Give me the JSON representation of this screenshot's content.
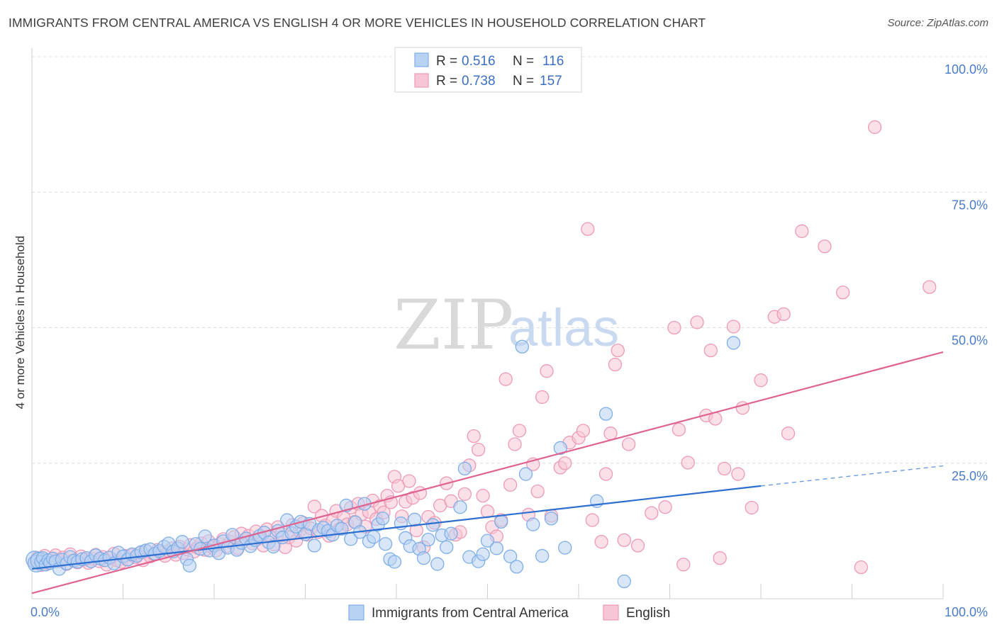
{
  "title": "IMMIGRANTS FROM CENTRAL AMERICA VS ENGLISH 4 OR MORE VEHICLES IN HOUSEHOLD CORRELATION CHART",
  "source": "Source: ZipAtlas.com",
  "watermark": {
    "zip": "ZIP",
    "atlas": "atlas"
  },
  "legend": {
    "r_label": "R =",
    "n_label": "N =",
    "series": [
      {
        "name": "Immigrants from Central America",
        "r": "0.516",
        "n": "116",
        "color": "#7eaee8",
        "fill": "#b8d2f2"
      },
      {
        "name": "English",
        "r": "0.738",
        "n": "157",
        "color": "#ee9ab5",
        "fill": "#f7c6d6"
      }
    ]
  },
  "chart_data": {
    "type": "scatter",
    "title": "IMMIGRANTS FROM CENTRAL AMERICA VS ENGLISH 4 OR MORE VEHICLES IN HOUSEHOLD CORRELATION CHART",
    "xlabel": "",
    "ylabel": "4 or more Vehicles in Household",
    "xlim": [
      0,
      100
    ],
    "ylim": [
      0,
      100
    ],
    "x_tick_labels": [
      "0.0%",
      "100.0%"
    ],
    "y_ticks": [
      25,
      50,
      75,
      100
    ],
    "y_tick_labels": [
      "25.0%",
      "50.0%",
      "75.0%",
      "100.0%"
    ],
    "grid": true,
    "legend_position": "top-center",
    "series": [
      {
        "name": "Immigrants from Central America",
        "color": "#5b93de",
        "trend": {
          "x": [
            0,
            80
          ],
          "y": [
            5.5,
            20.8
          ],
          "dashed_to": [
            100,
            24.5
          ],
          "color": "#2c6fd0"
        },
        "points": [
          [
            0.3,
            7.2
          ],
          [
            0.5,
            6.5
          ],
          [
            0.8,
            7.0
          ],
          [
            1.0,
            6.8
          ],
          [
            1.2,
            7.5
          ],
          [
            1.5,
            6.3
          ],
          [
            1.8,
            7.1
          ],
          [
            2.0,
            6.6
          ],
          [
            2.3,
            7.4
          ],
          [
            2.6,
            6.9
          ],
          [
            3.0,
            5.5
          ],
          [
            3.3,
            7.2
          ],
          [
            3.8,
            6.5
          ],
          [
            4.2,
            7.7
          ],
          [
            4.6,
            7.0
          ],
          [
            5.0,
            6.8
          ],
          [
            5.5,
            7.3
          ],
          [
            6.0,
            7.5
          ],
          [
            6.5,
            6.9
          ],
          [
            7.0,
            8.0
          ],
          [
            7.5,
            7.4
          ],
          [
            8.0,
            7.1
          ],
          [
            8.5,
            7.6
          ],
          [
            9.0,
            6.5
          ],
          [
            9.5,
            8.5
          ],
          [
            10.0,
            7.8
          ],
          [
            10.5,
            7.2
          ],
          [
            11.0,
            8.2
          ],
          [
            11.5,
            7.9
          ],
          [
            12.0,
            8.6
          ],
          [
            12.5,
            8.9
          ],
          [
            13.0,
            9.1
          ],
          [
            13.5,
            8.3
          ],
          [
            14.0,
            8.8
          ],
          [
            14.5,
            9.6
          ],
          [
            15.0,
            10.2
          ],
          [
            15.5,
            8.7
          ],
          [
            16.0,
            9.3
          ],
          [
            16.5,
            10.5
          ],
          [
            17.0,
            7.3
          ],
          [
            17.3,
            6.1
          ],
          [
            18.0,
            10.1
          ],
          [
            18.5,
            9.2
          ],
          [
            19.0,
            11.5
          ],
          [
            19.5,
            8.9
          ],
          [
            20.0,
            9.8
          ],
          [
            20.5,
            8.4
          ],
          [
            21.0,
            10.6
          ],
          [
            21.5,
            9.4
          ],
          [
            22.0,
            11.8
          ],
          [
            22.5,
            9.0
          ],
          [
            23.0,
            10.3
          ],
          [
            23.5,
            11.1
          ],
          [
            24.0,
            9.7
          ],
          [
            24.5,
            10.8
          ],
          [
            25.0,
            11.6
          ],
          [
            25.5,
            12.2
          ],
          [
            26.0,
            10.4
          ],
          [
            26.5,
            9.6
          ],
          [
            27.0,
            12.5
          ],
          [
            27.5,
            11.3
          ],
          [
            28.0,
            14.5
          ],
          [
            28.5,
            12.1
          ],
          [
            29.0,
            13.3
          ],
          [
            29.5,
            14.2
          ],
          [
            30.0,
            11.9
          ],
          [
            30.5,
            13.8
          ],
          [
            31.0,
            9.8
          ],
          [
            31.5,
            12.7
          ],
          [
            32.0,
            13.1
          ],
          [
            32.5,
            12.5
          ],
          [
            33.0,
            11.8
          ],
          [
            33.5,
            13.5
          ],
          [
            34.0,
            12.9
          ],
          [
            34.5,
            17.2
          ],
          [
            35.0,
            11.0
          ],
          [
            35.5,
            14.1
          ],
          [
            36.0,
            12.3
          ],
          [
            36.5,
            17.5
          ],
          [
            37.0,
            10.6
          ],
          [
            37.5,
            11.4
          ],
          [
            38.0,
            13.7
          ],
          [
            38.5,
            14.8
          ],
          [
            38.8,
            10.1
          ],
          [
            39.3,
            7.3
          ],
          [
            39.8,
            6.8
          ],
          [
            40.5,
            13.9
          ],
          [
            41.0,
            11.2
          ],
          [
            41.5,
            9.7
          ],
          [
            42.0,
            14.6
          ],
          [
            42.5,
            9.2
          ],
          [
            43.0,
            7.5
          ],
          [
            43.5,
            10.9
          ],
          [
            44.0,
            13.6
          ],
          [
            44.5,
            6.4
          ],
          [
            45.0,
            11.7
          ],
          [
            45.5,
            9.5
          ],
          [
            46.0,
            12.0
          ],
          [
            47.0,
            16.9
          ],
          [
            47.5,
            24.0
          ],
          [
            48.0,
            7.7
          ],
          [
            49.0,
            6.9
          ],
          [
            49.5,
            8.2
          ],
          [
            50.0,
            10.7
          ],
          [
            51.0,
            9.3
          ],
          [
            51.5,
            14.2
          ],
          [
            52.5,
            7.8
          ],
          [
            53.2,
            5.9
          ],
          [
            53.8,
            46.5
          ],
          [
            54.2,
            23.0
          ],
          [
            55.0,
            13.7
          ],
          [
            56.0,
            7.9
          ],
          [
            57.0,
            14.8
          ],
          [
            58.0,
            27.8
          ],
          [
            58.5,
            9.4
          ],
          [
            62.0,
            18.0
          ],
          [
            63.0,
            34.1
          ],
          [
            65.0,
            3.2
          ],
          [
            77.0,
            47.2
          ]
        ]
      },
      {
        "name": "English",
        "color": "#ec8fae",
        "trend": {
          "x": [
            0,
            100
          ],
          "y": [
            1.0,
            45.5
          ],
          "color": "#e0628e"
        },
        "points": [
          [
            0.3,
            6.8
          ],
          [
            0.6,
            7.5
          ],
          [
            1.0,
            6.2
          ],
          [
            1.4,
            7.9
          ],
          [
            1.8,
            6.5
          ],
          [
            2.2,
            7.3
          ],
          [
            2.6,
            8.0
          ],
          [
            3.0,
            6.9
          ],
          [
            3.4,
            7.6
          ],
          [
            3.8,
            6.4
          ],
          [
            4.2,
            8.2
          ],
          [
            4.6,
            7.1
          ],
          [
            5.0,
            6.7
          ],
          [
            5.4,
            7.8
          ],
          [
            5.8,
            7.2
          ],
          [
            6.2,
            6.6
          ],
          [
            6.6,
            7.4
          ],
          [
            7.0,
            8.1
          ],
          [
            7.4,
            6.9
          ],
          [
            7.8,
            7.7
          ],
          [
            8.2,
            6.3
          ],
          [
            8.6,
            7.5
          ],
          [
            9.0,
            8.3
          ],
          [
            9.4,
            7.0
          ],
          [
            9.8,
            6.8
          ],
          [
            10.2,
            7.9
          ],
          [
            10.6,
            7.3
          ],
          [
            11.0,
            8.0
          ],
          [
            11.4,
            7.6
          ],
          [
            11.8,
            8.4
          ],
          [
            12.2,
            7.1
          ],
          [
            12.6,
            8.7
          ],
          [
            13.0,
            7.8
          ],
          [
            13.4,
            8.2
          ],
          [
            13.8,
            9.0
          ],
          [
            14.2,
            8.5
          ],
          [
            14.6,
            7.9
          ],
          [
            15.0,
            8.8
          ],
          [
            15.4,
            9.3
          ],
          [
            15.8,
            8.1
          ],
          [
            16.2,
            9.6
          ],
          [
            16.6,
            8.4
          ],
          [
            17.0,
            9.1
          ],
          [
            17.4,
            9.9
          ],
          [
            17.8,
            8.7
          ],
          [
            18.2,
            9.4
          ],
          [
            18.6,
            10.2
          ],
          [
            19.0,
            9.0
          ],
          [
            19.4,
            10.6
          ],
          [
            19.8,
            9.5
          ],
          [
            20.2,
            8.9
          ],
          [
            20.6,
            10.1
          ],
          [
            21.0,
            11.0
          ],
          [
            21.4,
            9.7
          ],
          [
            21.8,
            10.5
          ],
          [
            22.2,
            11.4
          ],
          [
            22.6,
            9.3
          ],
          [
            23.0,
            12.0
          ],
          [
            23.4,
            10.8
          ],
          [
            23.8,
            11.6
          ],
          [
            24.2,
            10.2
          ],
          [
            24.6,
            12.4
          ],
          [
            25.0,
            11.1
          ],
          [
            25.4,
            9.8
          ],
          [
            25.8,
            12.8
          ],
          [
            26.2,
            11.5
          ],
          [
            26.6,
            10.0
          ],
          [
            27.0,
            13.2
          ],
          [
            27.4,
            12.0
          ],
          [
            27.8,
            9.5
          ],
          [
            28.2,
            11.3
          ],
          [
            28.6,
            13.6
          ],
          [
            29.0,
            10.7
          ],
          [
            29.4,
            12.5
          ],
          [
            29.8,
            14.0
          ],
          [
            30.2,
            11.8
          ],
          [
            30.6,
            13.0
          ],
          [
            31.0,
            17.0
          ],
          [
            31.4,
            12.3
          ],
          [
            31.8,
            15.3
          ],
          [
            32.2,
            13.5
          ],
          [
            32.6,
            11.6
          ],
          [
            33.0,
            14.4
          ],
          [
            33.4,
            16.2
          ],
          [
            33.8,
            12.9
          ],
          [
            34.2,
            15.0
          ],
          [
            34.6,
            13.7
          ],
          [
            35.0,
            16.8
          ],
          [
            35.4,
            14.2
          ],
          [
            35.8,
            17.5
          ],
          [
            36.2,
            15.6
          ],
          [
            36.6,
            13.3
          ],
          [
            37.0,
            16.0
          ],
          [
            37.4,
            18.1
          ],
          [
            37.8,
            14.7
          ],
          [
            38.2,
            17.1
          ],
          [
            38.6,
            15.9
          ],
          [
            39.0,
            19.0
          ],
          [
            39.4,
            17.8
          ],
          [
            39.8,
            22.5
          ],
          [
            40.2,
            20.8
          ],
          [
            40.6,
            15.2
          ],
          [
            41.0,
            17.9
          ],
          [
            41.4,
            21.7
          ],
          [
            41.8,
            18.6
          ],
          [
            42.2,
            12.6
          ],
          [
            42.6,
            19.5
          ],
          [
            43.0,
            9.5
          ],
          [
            43.5,
            15.1
          ],
          [
            44.2,
            14.0
          ],
          [
            44.8,
            17.2
          ],
          [
            45.5,
            21.3
          ],
          [
            46.0,
            18.0
          ],
          [
            46.5,
            11.8
          ],
          [
            47.0,
            12.3
          ],
          [
            47.5,
            19.3
          ],
          [
            48.0,
            24.6
          ],
          [
            48.5,
            30.0
          ],
          [
            49.0,
            27.5
          ],
          [
            49.5,
            19.0
          ],
          [
            50.0,
            16.1
          ],
          [
            50.5,
            13.2
          ],
          [
            51.0,
            11.5
          ],
          [
            51.5,
            14.5
          ],
          [
            52.0,
            40.5
          ],
          [
            52.5,
            21.0
          ],
          [
            53.0,
            28.5
          ],
          [
            53.5,
            31.0
          ],
          [
            54.5,
            15.5
          ],
          [
            55.0,
            24.8
          ],
          [
            55.5,
            19.8
          ],
          [
            56.0,
            37.2
          ],
          [
            56.5,
            42.0
          ],
          [
            57.0,
            15.3
          ],
          [
            58.0,
            24.2
          ],
          [
            58.5,
            25.0
          ],
          [
            59.0,
            28.8
          ],
          [
            60.0,
            29.7
          ],
          [
            60.5,
            31.0
          ],
          [
            61.0,
            68.2
          ],
          [
            61.5,
            14.5
          ],
          [
            62.5,
            10.5
          ],
          [
            63.0,
            23.0
          ],
          [
            63.5,
            30.5
          ],
          [
            64.0,
            43.2
          ],
          [
            64.3,
            45.8
          ],
          [
            65.0,
            10.8
          ],
          [
            65.5,
            28.5
          ],
          [
            66.5,
            9.8
          ],
          [
            68.0,
            15.8
          ],
          [
            69.5,
            16.9
          ],
          [
            70.5,
            50.0
          ],
          [
            71.0,
            31.2
          ],
          [
            71.5,
            6.3
          ],
          [
            72.0,
            25.1
          ],
          [
            73.0,
            51.0
          ],
          [
            74.0,
            33.8
          ],
          [
            74.5,
            45.8
          ],
          [
            75.0,
            33.2
          ],
          [
            75.5,
            7.5
          ],
          [
            76.0,
            24.0
          ],
          [
            77.0,
            50.2
          ],
          [
            77.5,
            23.0
          ],
          [
            78.0,
            35.2
          ],
          [
            79.0,
            16.8
          ],
          [
            80.0,
            40.3
          ],
          [
            81.5,
            52.0
          ],
          [
            82.5,
            52.5
          ],
          [
            83.0,
            30.5
          ],
          [
            84.5,
            67.8
          ],
          [
            87.0,
            65.0
          ],
          [
            89.0,
            56.5
          ],
          [
            91.0,
            5.8
          ],
          [
            92.5,
            87.0
          ],
          [
            98.5,
            57.5
          ]
        ]
      }
    ]
  }
}
